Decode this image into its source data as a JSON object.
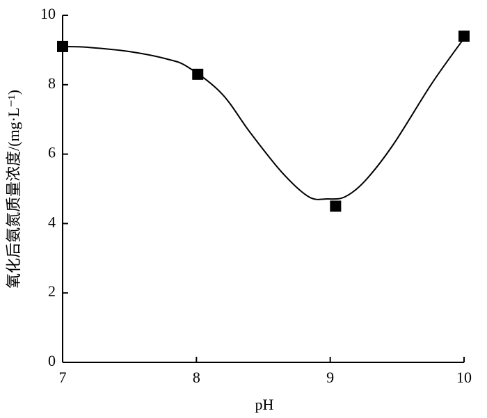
{
  "chart_data": {
    "type": "scatter",
    "xlabel": "pH",
    "ylabel": "氧化后氨氮质量浓度/(mg·L⁻¹)",
    "xlim": [
      7,
      10
    ],
    "xticks": [
      7,
      8,
      9,
      10
    ],
    "ylim": [
      0,
      10
    ],
    "yticks": [
      0,
      2,
      4,
      6,
      8,
      10
    ],
    "series": [
      {
        "type": "scatter",
        "marker": "square",
        "color": "#000000",
        "x": [
          7.0,
          8.01,
          9.04,
          10.0
        ],
        "values": [
          9.1,
          8.3,
          4.5,
          9.4
        ]
      },
      {
        "type": "line",
        "color": "#000000",
        "x": [
          7.0,
          7.18,
          7.49,
          7.78,
          7.94,
          8.19,
          8.4,
          8.64,
          8.84,
          8.98,
          9.11,
          9.26,
          9.47,
          9.76,
          10.0
        ],
        "values": [
          9.1,
          9.08,
          8.96,
          8.74,
          8.5,
          7.74,
          6.63,
          5.47,
          4.77,
          4.71,
          4.77,
          5.23,
          6.27,
          8.04,
          9.34
        ]
      }
    ]
  }
}
